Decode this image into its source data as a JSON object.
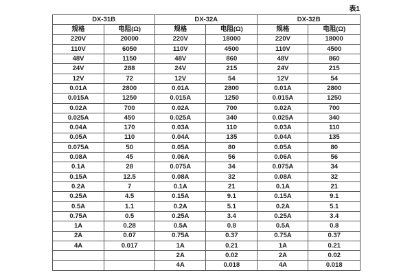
{
  "caption": "表1",
  "table": {
    "groups": [
      {
        "name": "DX-31B",
        "col_headers": [
          "规格",
          "电阻(Ω)"
        ],
        "rows": [
          [
            "220V",
            "20000"
          ],
          [
            "110V",
            "6050"
          ],
          [
            "48V",
            "1150"
          ],
          [
            "24V",
            "288"
          ],
          [
            "12V",
            "72"
          ],
          [
            "0.01A",
            "2800"
          ],
          [
            "0.015A",
            "1250"
          ],
          [
            "0.02A",
            "700"
          ],
          [
            "0.025A",
            "450"
          ],
          [
            "0.04A",
            "170"
          ],
          [
            "0.05A",
            "110"
          ],
          [
            "0.075A",
            "50"
          ],
          [
            "0.08A",
            "45"
          ],
          [
            "0.1A",
            "28"
          ],
          [
            "0.15A",
            "12.5"
          ],
          [
            "0.2A",
            "7"
          ],
          [
            "0.25A",
            "4.5"
          ],
          [
            "0.5A",
            "1.1"
          ],
          [
            "0.75A",
            "0.5"
          ],
          [
            "1A",
            "0.28"
          ],
          [
            "2A",
            "0.07"
          ],
          [
            "4A",
            "0.017"
          ],
          [
            "",
            ""
          ],
          [
            "",
            ""
          ]
        ]
      },
      {
        "name": "DX-32A",
        "col_headers": [
          "规格",
          "电阻(Ω)"
        ],
        "rows": [
          [
            "220V",
            "18000"
          ],
          [
            "110V",
            "4500"
          ],
          [
            "48V",
            "860"
          ],
          [
            "24V",
            "215"
          ],
          [
            "12V",
            "54"
          ],
          [
            "0.01A",
            "2800"
          ],
          [
            "0.015A",
            "1250"
          ],
          [
            "0.02A",
            "700"
          ],
          [
            "0.025A",
            "340"
          ],
          [
            "0.03A",
            "110"
          ],
          [
            "0.04A",
            "135"
          ],
          [
            "0.05A",
            "80"
          ],
          [
            "0.06A",
            "56"
          ],
          [
            "0.075A",
            "34"
          ],
          [
            "0.08A",
            "32"
          ],
          [
            "0.1A",
            "21"
          ],
          [
            "0.15A",
            "9.1"
          ],
          [
            "0.2A",
            "5.1"
          ],
          [
            "0.25A",
            "3.4"
          ],
          [
            "0.5A",
            "0.8"
          ],
          [
            "0.75A",
            "0.37"
          ],
          [
            "1A",
            "0.21"
          ],
          [
            "2A",
            "0.02"
          ],
          [
            "4A",
            "0.018"
          ]
        ]
      },
      {
        "name": "DX-32B",
        "col_headers": [
          "规格",
          "电阻(Ω)"
        ],
        "rows": [
          [
            "220V",
            "18000"
          ],
          [
            "110V",
            "4500"
          ],
          [
            "48V",
            "860"
          ],
          [
            "24V",
            "215"
          ],
          [
            "12V",
            "54"
          ],
          [
            "0.01A",
            "2800"
          ],
          [
            "0.015A",
            "1250"
          ],
          [
            "0.02A",
            "700"
          ],
          [
            "0.025A",
            "340"
          ],
          [
            "0.03A",
            "110"
          ],
          [
            "0.04A",
            "135"
          ],
          [
            "0.05A",
            "80"
          ],
          [
            "0.06A",
            "56"
          ],
          [
            "0.075A",
            "34"
          ],
          [
            "0.08A",
            "32"
          ],
          [
            "0.1A",
            "21"
          ],
          [
            "0.15A",
            "9.1"
          ],
          [
            "0.2A",
            "5.1"
          ],
          [
            "0.25A",
            "3.4"
          ],
          [
            "0.5A",
            "0.8"
          ],
          [
            "0.75A",
            "0.37"
          ],
          [
            "1A",
            "0.21"
          ],
          [
            "2A",
            "0.02"
          ],
          [
            "4A",
            "0.018"
          ]
        ]
      }
    ]
  }
}
